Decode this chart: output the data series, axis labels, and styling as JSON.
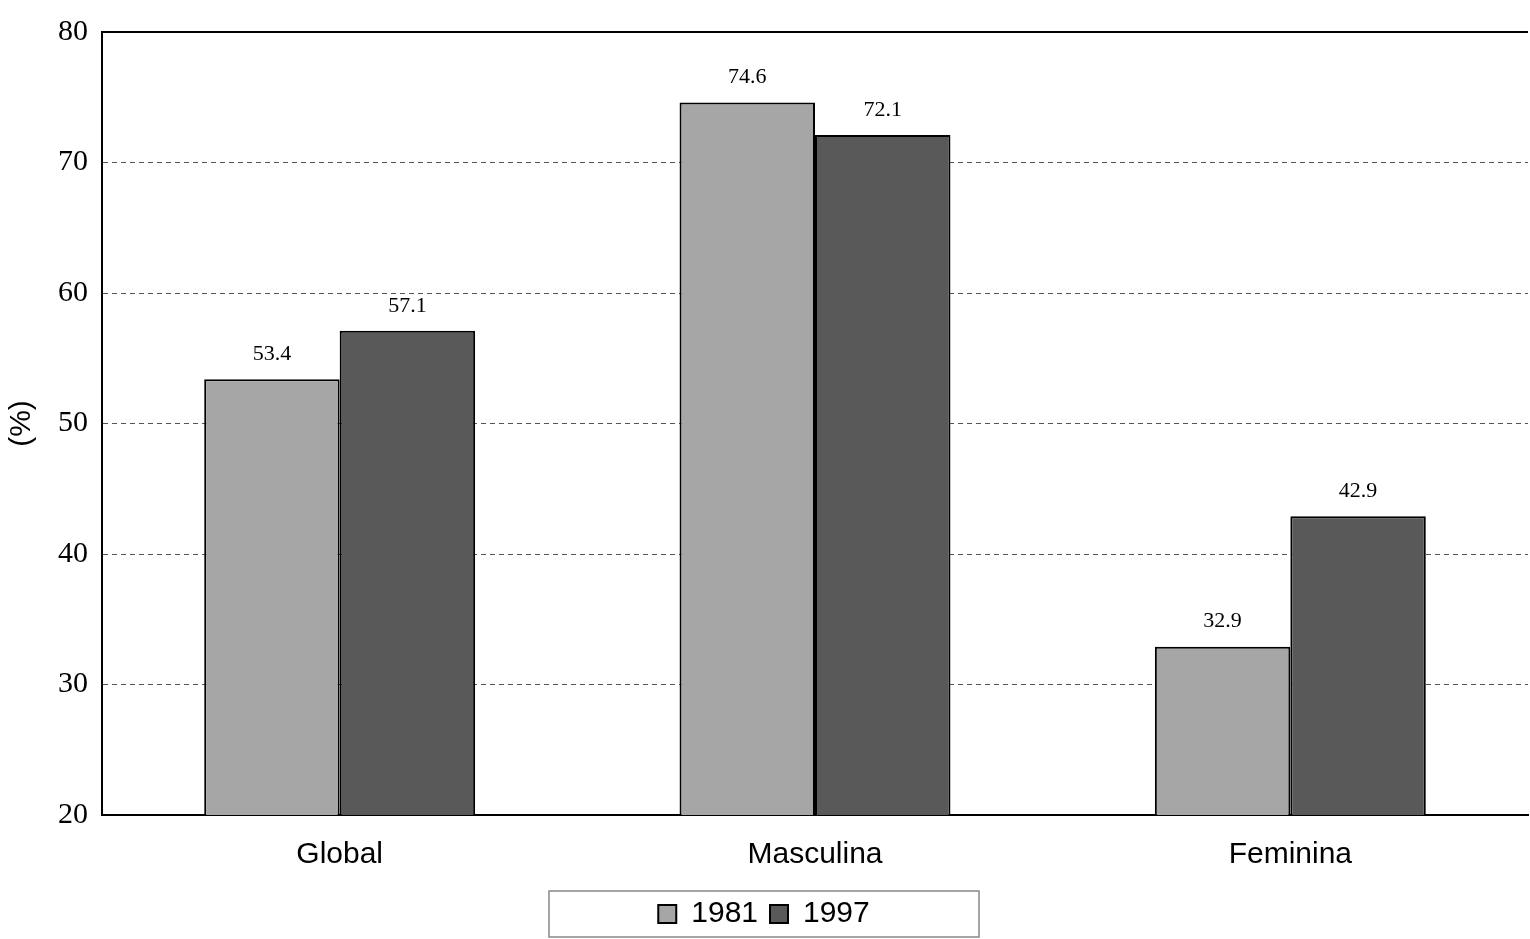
{
  "chart_data": {
    "type": "bar",
    "ylabel": "(%)",
    "categories": [
      "Global",
      "Masculina",
      "Feminina"
    ],
    "series": [
      {
        "name": "1981",
        "color": "#a6a6a6",
        "values": [
          53.4,
          74.6,
          32.9
        ]
      },
      {
        "name": "1997",
        "color": "#595959",
        "values": [
          57.1,
          72.1,
          42.9
        ]
      }
    ],
    "ylim": [
      20,
      80
    ],
    "yticks": [
      20,
      30,
      40,
      50,
      60,
      70,
      80
    ],
    "grid": "y",
    "legend": "bottom",
    "data_labels": true
  }
}
